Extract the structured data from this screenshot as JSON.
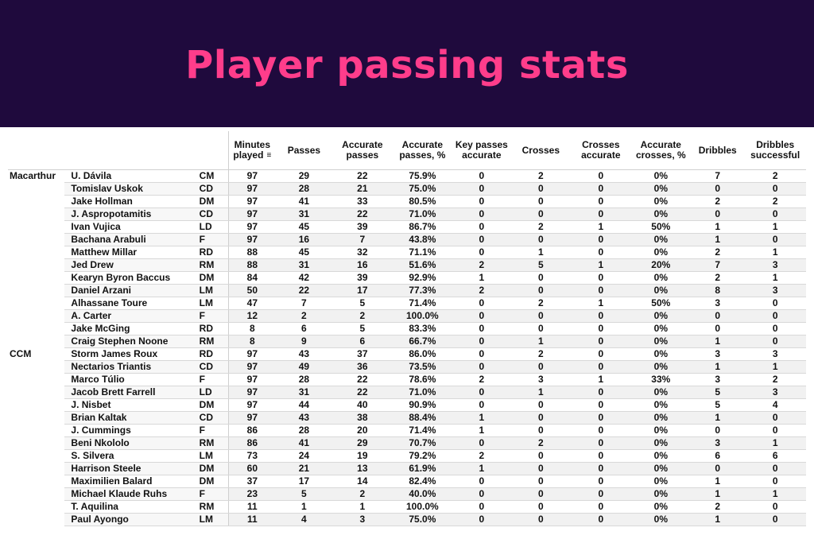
{
  "title": "Player passing stats",
  "columns": [
    {
      "key": "min",
      "label": "Minutes played"
    },
    {
      "key": "passes",
      "label": "Passes"
    },
    {
      "key": "acc",
      "label": "Accurate passes"
    },
    {
      "key": "accpct",
      "label": "Accurate passes, %"
    },
    {
      "key": "key",
      "label": "Key passes accurate"
    },
    {
      "key": "crosses",
      "label": "Crosses"
    },
    {
      "key": "crossacc",
      "label": "Crosses accurate"
    },
    {
      "key": "crosspct",
      "label": "Accurate crosses, %"
    },
    {
      "key": "drib",
      "label": "Dribbles"
    },
    {
      "key": "dribsucc",
      "label": "Dribbles successful"
    }
  ],
  "rows": [
    [
      "Macarthur",
      "U. Dávila",
      "CM",
      "97",
      "29",
      "22",
      "75.9%",
      "0",
      "2",
      "0",
      "0%",
      "7",
      "2"
    ],
    [
      "",
      "Tomislav Uskok",
      "CD",
      "97",
      "28",
      "21",
      "75.0%",
      "0",
      "0",
      "0",
      "0%",
      "0",
      "0"
    ],
    [
      "",
      "Jake Hollman",
      "DM",
      "97",
      "41",
      "33",
      "80.5%",
      "0",
      "0",
      "0",
      "0%",
      "2",
      "2"
    ],
    [
      "",
      "J. Aspropotamitis",
      "CD",
      "97",
      "31",
      "22",
      "71.0%",
      "0",
      "0",
      "0",
      "0%",
      "0",
      "0"
    ],
    [
      "",
      "Ivan Vujica",
      "LD",
      "97",
      "45",
      "39",
      "86.7%",
      "0",
      "2",
      "1",
      "50%",
      "1",
      "1"
    ],
    [
      "",
      "Bachana Arabuli",
      "F",
      "97",
      "16",
      "7",
      "43.8%",
      "0",
      "0",
      "0",
      "0%",
      "1",
      "0"
    ],
    [
      "",
      "Matthew Millar",
      "RD",
      "88",
      "45",
      "32",
      "71.1%",
      "0",
      "1",
      "0",
      "0%",
      "2",
      "1"
    ],
    [
      "",
      "Jed Drew",
      "RM",
      "88",
      "31",
      "16",
      "51.6%",
      "2",
      "5",
      "1",
      "20%",
      "7",
      "3"
    ],
    [
      "",
      "Kearyn Byron Baccus",
      "DM",
      "84",
      "42",
      "39",
      "92.9%",
      "1",
      "0",
      "0",
      "0%",
      "2",
      "1"
    ],
    [
      "",
      "Daniel Arzani",
      "LM",
      "50",
      "22",
      "17",
      "77.3%",
      "2",
      "0",
      "0",
      "0%",
      "8",
      "3"
    ],
    [
      "",
      "Alhassane Toure",
      "LM",
      "47",
      "7",
      "5",
      "71.4%",
      "0",
      "2",
      "1",
      "50%",
      "3",
      "0"
    ],
    [
      "",
      "A. Carter",
      "F",
      "12",
      "2",
      "2",
      "100.0%",
      "0",
      "0",
      "0",
      "0%",
      "0",
      "0"
    ],
    [
      "",
      "Jake McGing",
      "RD",
      "8",
      "6",
      "5",
      "83.3%",
      "0",
      "0",
      "0",
      "0%",
      "0",
      "0"
    ],
    [
      "",
      "Craig Stephen Noone",
      "RM",
      "8",
      "9",
      "6",
      "66.7%",
      "0",
      "1",
      "0",
      "0%",
      "1",
      "0"
    ],
    [
      "CCM",
      "Storm James Roux",
      "RD",
      "97",
      "43",
      "37",
      "86.0%",
      "0",
      "2",
      "0",
      "0%",
      "3",
      "3"
    ],
    [
      "",
      "Nectarios Triantis",
      "CD",
      "97",
      "49",
      "36",
      "73.5%",
      "0",
      "0",
      "0",
      "0%",
      "1",
      "1"
    ],
    [
      "",
      "Marco Túlio",
      "F",
      "97",
      "28",
      "22",
      "78.6%",
      "2",
      "3",
      "1",
      "33%",
      "3",
      "2"
    ],
    [
      "",
      "Jacob Brett Farrell",
      "LD",
      "97",
      "31",
      "22",
      "71.0%",
      "0",
      "1",
      "0",
      "0%",
      "5",
      "3"
    ],
    [
      "",
      "J. Nisbet",
      "DM",
      "97",
      "44",
      "40",
      "90.9%",
      "0",
      "0",
      "0",
      "0%",
      "5",
      "4"
    ],
    [
      "",
      "Brian Kaltak",
      "CD",
      "97",
      "43",
      "38",
      "88.4%",
      "1",
      "0",
      "0",
      "0%",
      "1",
      "0"
    ],
    [
      "",
      "J. Cummings",
      "F",
      "86",
      "28",
      "20",
      "71.4%",
      "1",
      "0",
      "0",
      "0%",
      "0",
      "0"
    ],
    [
      "",
      "Beni Nkololo",
      "RM",
      "86",
      "41",
      "29",
      "70.7%",
      "0",
      "2",
      "0",
      "0%",
      "3",
      "1"
    ],
    [
      "",
      "S. Silvera",
      "LM",
      "73",
      "24",
      "19",
      "79.2%",
      "2",
      "0",
      "0",
      "0%",
      "6",
      "6"
    ],
    [
      "",
      "Harrison Steele",
      "DM",
      "60",
      "21",
      "13",
      "61.9%",
      "1",
      "0",
      "0",
      "0%",
      "0",
      "0"
    ],
    [
      "",
      "Maximilien Balard",
      "DM",
      "37",
      "17",
      "14",
      "82.4%",
      "0",
      "0",
      "0",
      "0%",
      "1",
      "0"
    ],
    [
      "",
      "Michael Klaude Ruhs",
      "F",
      "23",
      "5",
      "2",
      "40.0%",
      "0",
      "0",
      "0",
      "0%",
      "1",
      "1"
    ],
    [
      "",
      "T. Aquilina",
      "RM",
      "11",
      "1",
      "1",
      "100.0%",
      "0",
      "0",
      "0",
      "0%",
      "2",
      "0"
    ],
    [
      "",
      "Paul Ayongo",
      "LM",
      "11",
      "4",
      "3",
      "75.0%",
      "0",
      "0",
      "0",
      "0%",
      "1",
      "0"
    ]
  ]
}
